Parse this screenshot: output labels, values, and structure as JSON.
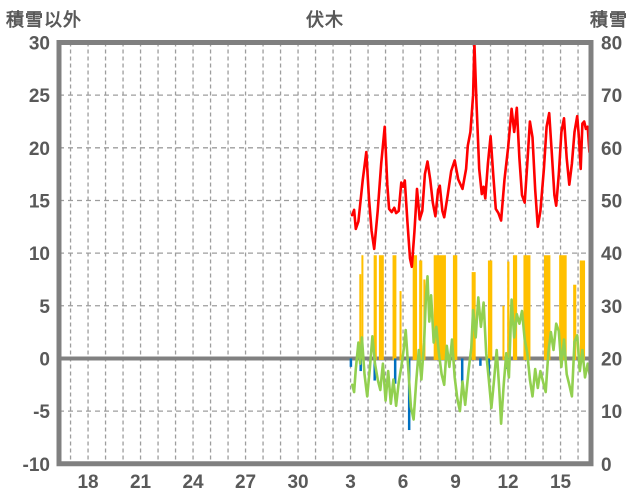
{
  "chart_data": {
    "type": "line",
    "title": "伏木",
    "background": "#ffffff",
    "text_color": "#595959",
    "border_color": "#808080",
    "grid_color": "#9d9d9d",
    "zero_line_color": "#808080",
    "left_axis": {
      "label": "積雪以外",
      "min": -10,
      "max": 30,
      "ticks": [
        30,
        25,
        20,
        15,
        10,
        5,
        0,
        -5,
        -10
      ]
    },
    "right_axis": {
      "label": "積雪",
      "min": 0,
      "max": 80,
      "ticks": [
        80,
        70,
        60,
        50,
        40,
        30,
        20,
        10,
        0
      ]
    },
    "x_axis": {
      "domain": [
        16.34,
        46.74
      ],
      "tick_days": [
        18,
        21,
        24,
        27,
        30,
        33,
        36,
        39,
        42,
        45
      ],
      "tick_labels": [
        "18",
        "21",
        "24",
        "27",
        "30",
        "3",
        "6",
        "9",
        "12",
        "15"
      ],
      "grid_day_start": 17,
      "grid_day_end": 46,
      "grid_step": 1
    },
    "series": [
      {
        "name": "yellow-bars",
        "type": "bar-range",
        "color": "#ffc000",
        "bars": [
          [
            33.5,
            33.6,
            8.0
          ],
          [
            33.62,
            33.72,
            9.8
          ],
          [
            34.32,
            34.5,
            9.8
          ],
          [
            34.62,
            34.9,
            9.8
          ],
          [
            35.4,
            35.62,
            9.8
          ],
          [
            35.8,
            35.88,
            6.4
          ],
          [
            36.55,
            36.8,
            9.8
          ],
          [
            36.92,
            37.1,
            9.3
          ],
          [
            37.16,
            37.28,
            7.5
          ],
          [
            37.75,
            38.45,
            9.8
          ],
          [
            38.85,
            39.1,
            9.8
          ],
          [
            39.92,
            40.15,
            8.2
          ],
          [
            40.85,
            41.1,
            9.3
          ],
          [
            41.68,
            41.76,
            5.0
          ],
          [
            41.95,
            42.08,
            9.2
          ],
          [
            42.28,
            42.52,
            9.8
          ],
          [
            42.88,
            43.28,
            9.8
          ],
          [
            44.05,
            44.42,
            9.8
          ],
          [
            44.92,
            45.35,
            9.8
          ],
          [
            45.72,
            45.9,
            7.0
          ],
          [
            46.1,
            46.4,
            9.3
          ]
        ]
      },
      {
        "name": "blue-bars",
        "type": "bar-down",
        "color": "#0070c0",
        "bars": [
          [
            33.02,
            -0.8
          ],
          [
            33.58,
            -1.2
          ],
          [
            34.38,
            -2.1
          ],
          [
            35.55,
            -2.4
          ],
          [
            36.35,
            -6.8
          ],
          [
            39.38,
            -2.4
          ],
          [
            40.42,
            -0.7
          ],
          [
            40.9,
            -2.0
          ],
          [
            41.95,
            -1.0
          ]
        ]
      },
      {
        "name": "green-line",
        "type": "line",
        "color": "#92d050",
        "points": [
          [
            33.1,
            -2.5
          ],
          [
            33.2,
            -3.2
          ],
          [
            33.3,
            -1.0
          ],
          [
            33.45,
            1.5
          ],
          [
            33.55,
            -0.5
          ],
          [
            33.65,
            2.0
          ],
          [
            33.8,
            -1.5
          ],
          [
            33.95,
            -3.6
          ],
          [
            34.1,
            -1.0
          ],
          [
            34.25,
            2.1
          ],
          [
            34.4,
            -0.5
          ],
          [
            34.55,
            -2.0
          ],
          [
            34.7,
            -3.0
          ],
          [
            34.85,
            -0.5
          ],
          [
            35.0,
            -4.0
          ],
          [
            35.15,
            -1.2
          ],
          [
            35.3,
            -4.3
          ],
          [
            35.45,
            -2.0
          ],
          [
            35.6,
            -4.5
          ],
          [
            35.75,
            -2.3
          ],
          [
            35.9,
            -0.8
          ],
          [
            36.05,
            1.0
          ],
          [
            36.15,
            2.7
          ],
          [
            36.3,
            -1.0
          ],
          [
            36.45,
            -4.6
          ],
          [
            36.6,
            -5.8
          ],
          [
            36.75,
            -2.2
          ],
          [
            36.9,
            0.8
          ],
          [
            37.05,
            -2.0
          ],
          [
            37.2,
            1.5
          ],
          [
            37.3,
            5.5
          ],
          [
            37.4,
            7.8
          ],
          [
            37.5,
            3.5
          ],
          [
            37.6,
            6.0
          ],
          [
            37.75,
            1.5
          ],
          [
            37.9,
            3.0
          ],
          [
            38.05,
            0.5
          ],
          [
            38.2,
            -1.5
          ],
          [
            38.35,
            -2.5
          ],
          [
            38.5,
            1.2
          ],
          [
            38.65,
            -0.8
          ],
          [
            38.8,
            1.8
          ],
          [
            38.95,
            -1.8
          ],
          [
            39.1,
            -3.8
          ],
          [
            39.25,
            -5.0
          ],
          [
            39.4,
            -2.2
          ],
          [
            39.55,
            -4.4
          ],
          [
            39.75,
            -1.0
          ],
          [
            39.9,
            1.0
          ],
          [
            40.0,
            4.6
          ],
          [
            40.15,
            2.0
          ],
          [
            40.3,
            5.8
          ],
          [
            40.45,
            3.0
          ],
          [
            40.6,
            5.3
          ],
          [
            40.75,
            0.5
          ],
          [
            40.9,
            -2.0
          ],
          [
            41.05,
            -4.7
          ],
          [
            41.2,
            -2.0
          ],
          [
            41.35,
            0.8
          ],
          [
            41.5,
            -3.0
          ],
          [
            41.6,
            -6.2
          ],
          [
            41.75,
            -2.5
          ],
          [
            41.9,
            0.5
          ],
          [
            42.05,
            -1.8
          ],
          [
            42.2,
            5.6
          ],
          [
            42.35,
            2.0
          ],
          [
            42.5,
            4.2
          ],
          [
            42.65,
            3.3
          ],
          [
            42.8,
            4.5
          ],
          [
            42.95,
            1.8
          ],
          [
            43.1,
            0.5
          ],
          [
            43.25,
            -2.0
          ],
          [
            43.4,
            -3.6
          ],
          [
            43.55,
            -1.0
          ],
          [
            43.7,
            -2.8
          ],
          [
            43.85,
            -1.2
          ],
          [
            44.0,
            -2.2
          ],
          [
            44.15,
            -3.2
          ],
          [
            44.3,
            0.5
          ],
          [
            44.45,
            2.5
          ],
          [
            44.6,
            0.8
          ],
          [
            44.75,
            3.3
          ],
          [
            44.9,
            2.6
          ],
          [
            45.05,
            -0.8
          ],
          [
            45.2,
            1.8
          ],
          [
            45.35,
            -1.5
          ],
          [
            45.5,
            -2.5
          ],
          [
            45.65,
            -3.6
          ],
          [
            45.8,
            1.6
          ],
          [
            45.95,
            2.2
          ],
          [
            46.1,
            -1.2
          ],
          [
            46.25,
            0.8
          ],
          [
            46.4,
            -1.8
          ],
          [
            46.55,
            -0.5
          ],
          [
            46.7,
            -1.9
          ]
        ]
      },
      {
        "name": "red-line",
        "type": "line",
        "color": "#ff0000",
        "points": [
          [
            33.09,
            13.6
          ],
          [
            33.2,
            14.1
          ],
          [
            33.3,
            12.3
          ],
          [
            33.45,
            13.0
          ],
          [
            33.7,
            17.0
          ],
          [
            33.9,
            19.6
          ],
          [
            34.05,
            15.3
          ],
          [
            34.2,
            12.1
          ],
          [
            34.35,
            10.4
          ],
          [
            34.55,
            14.0
          ],
          [
            34.75,
            18.5
          ],
          [
            34.95,
            22.0
          ],
          [
            35.1,
            16.5
          ],
          [
            35.2,
            14.2
          ],
          [
            35.35,
            13.9
          ],
          [
            35.5,
            14.3
          ],
          [
            35.6,
            13.8
          ],
          [
            35.75,
            14.0
          ],
          [
            35.9,
            16.7
          ],
          [
            36.0,
            16.3
          ],
          [
            36.1,
            16.9
          ],
          [
            36.25,
            13.0
          ],
          [
            36.4,
            9.5
          ],
          [
            36.5,
            8.7
          ],
          [
            36.65,
            12.0
          ],
          [
            36.8,
            16.1
          ],
          [
            36.95,
            13.2
          ],
          [
            37.1,
            14.0
          ],
          [
            37.25,
            17.5
          ],
          [
            37.4,
            18.7
          ],
          [
            37.55,
            17.0
          ],
          [
            37.7,
            14.8
          ],
          [
            37.85,
            13.5
          ],
          [
            38.0,
            16.0
          ],
          [
            38.1,
            16.4
          ],
          [
            38.25,
            14.0
          ],
          [
            38.35,
            13.4
          ],
          [
            38.55,
            15.5
          ],
          [
            38.75,
            17.8
          ],
          [
            38.95,
            18.8
          ],
          [
            39.15,
            17.0
          ],
          [
            39.4,
            16.1
          ],
          [
            39.6,
            18.0
          ],
          [
            39.7,
            20.2
          ],
          [
            39.85,
            21.5
          ],
          [
            40.0,
            25.0
          ],
          [
            40.08,
            29.9
          ],
          [
            40.2,
            24.0
          ],
          [
            40.35,
            18.0
          ],
          [
            40.5,
            15.6
          ],
          [
            40.6,
            16.3
          ],
          [
            40.7,
            15.2
          ],
          [
            40.85,
            18.5
          ],
          [
            41.0,
            21.1
          ],
          [
            41.15,
            17.5
          ],
          [
            41.3,
            14.2
          ],
          [
            41.45,
            13.8
          ],
          [
            41.6,
            13.1
          ],
          [
            41.8,
            17.0
          ],
          [
            42.0,
            20.0
          ],
          [
            42.2,
            23.7
          ],
          [
            42.35,
            21.5
          ],
          [
            42.5,
            23.8
          ],
          [
            42.65,
            19.0
          ],
          [
            42.8,
            15.5
          ],
          [
            42.95,
            14.8
          ],
          [
            43.1,
            18.5
          ],
          [
            43.25,
            22.5
          ],
          [
            43.4,
            21.0
          ],
          [
            43.55,
            16.0
          ],
          [
            43.7,
            12.5
          ],
          [
            43.85,
            14.0
          ],
          [
            44.05,
            18.0
          ],
          [
            44.2,
            22.0
          ],
          [
            44.35,
            23.3
          ],
          [
            44.5,
            19.5
          ],
          [
            44.65,
            15.5
          ],
          [
            44.75,
            14.5
          ],
          [
            44.9,
            17.5
          ],
          [
            45.05,
            21.5
          ],
          [
            45.2,
            22.8
          ],
          [
            45.35,
            19.0
          ],
          [
            45.5,
            16.5
          ],
          [
            45.65,
            18.5
          ],
          [
            45.8,
            21.5
          ],
          [
            45.95,
            23.0
          ],
          [
            46.05,
            21.0
          ],
          [
            46.15,
            18.0
          ],
          [
            46.25,
            22.3
          ],
          [
            46.35,
            22.5
          ],
          [
            46.45,
            21.8
          ],
          [
            46.55,
            22.0
          ],
          [
            46.65,
            19.6
          ]
        ]
      }
    ]
  }
}
